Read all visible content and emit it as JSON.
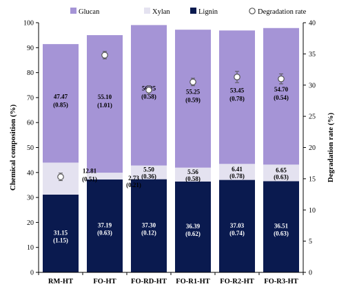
{
  "chart_data": {
    "type": "bar",
    "stacked": true,
    "categories": [
      "RM-HT",
      "FO-HT",
      "FO-RD-HT",
      "FO-R1-HT",
      "FO-R2-HT",
      "FO-R3-HT"
    ],
    "series": [
      {
        "name": "Lignin",
        "color": "#0a1a4f",
        "values": [
          31.15,
          37.19,
          37.3,
          36.39,
          37.03,
          36.51
        ],
        "labels": [
          "31.15",
          "37.19",
          "37.30",
          "36.39",
          "37.03",
          "36.51"
        ],
        "errors": [
          "(1.15)",
          "(0.63)",
          "(0.12)",
          "(0.62)",
          "(0.74)",
          "(0.63)"
        ]
      },
      {
        "name": "Xylan",
        "color": "#e4e2f0",
        "values": [
          12.81,
          2.73,
          5.5,
          5.56,
          6.41,
          6.65
        ],
        "labels": [
          "12.81",
          "2.73",
          "5.50",
          "5.56",
          "6.41",
          "6.65"
        ],
        "errors": [
          "(0.51)",
          "(0.21)",
          "(0.36)",
          "(0.58)",
          "(0.78)",
          "(0.63)"
        ]
      },
      {
        "name": "Glucan",
        "color": "#a594d6",
        "values": [
          47.47,
          55.1,
          56.25,
          55.25,
          53.45,
          54.7
        ],
        "labels": [
          "47.47",
          "55.10",
          "56.25",
          "55.25",
          "53.45",
          "54.70"
        ],
        "errors": [
          "(0.85)",
          "(1.01)",
          "(0.58)",
          "(0.59)",
          "(0.78)",
          "(0.54)"
        ]
      }
    ],
    "degradation_rate": {
      "name": "Degradation rate",
      "axis": "right",
      "values": [
        15.3,
        34.8,
        29.2,
        30.5,
        31.3,
        31.0
      ],
      "error": [
        0.6,
        0.6,
        0.7,
        0.6,
        0.9,
        0.8
      ]
    },
    "legend_order": [
      "Glucan",
      "Xylan",
      "Lignin",
      "Degradation rate"
    ],
    "legend_position": "top",
    "ylabel": "Chemical composition (%)",
    "ylim": [
      0,
      100
    ],
    "yticks": [
      "0",
      "10",
      "20",
      "30",
      "40",
      "50",
      "60",
      "70",
      "80",
      "90",
      "100"
    ],
    "y2label": "Degradation rate (%)",
    "y2lim": [
      0,
      40
    ],
    "y2ticks": [
      "0",
      "5",
      "10",
      "15",
      "20",
      "25",
      "30",
      "35",
      "40"
    ],
    "grid": false
  }
}
